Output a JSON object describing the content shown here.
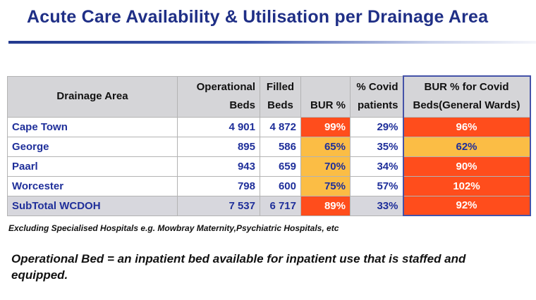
{
  "title": "Acute Care Availability & Utilisation per Drainage Area",
  "table": {
    "headers": {
      "area": "Drainage Area",
      "operational_1": "Operational",
      "operational_2": "Beds",
      "filled_1": "Filled",
      "filled_2": "Beds",
      "bur": "BUR %",
      "covid_1": "% Covid",
      "covid_2": "patients",
      "bur_covid_1": "BUR % for Covid",
      "bur_covid_2": "Beds(General Wards)"
    },
    "rows": [
      {
        "area": "Cape Town",
        "operational": "4 901",
        "filled": "4 872",
        "bur": "99%",
        "covid": "29%",
        "bur_covid": "96%"
      },
      {
        "area": "George",
        "operational": "895",
        "filled": "586",
        "bur": "65%",
        "covid": "35%",
        "bur_covid": "62%"
      },
      {
        "area": "Paarl",
        "operational": "943",
        "filled": "659",
        "bur": "70%",
        "covid": "34%",
        "bur_covid": "90%"
      },
      {
        "area": "Worcester",
        "operational": "798",
        "filled": "600",
        "bur": "75%",
        "covid": "57%",
        "bur_covid": "102%"
      },
      {
        "area": "SubTotal WCDOH",
        "operational": "7 537",
        "filled": "6 717",
        "bur": "89%",
        "covid": "33%",
        "bur_covid": "92%"
      }
    ]
  },
  "colors": {
    "title": "#1f2f86",
    "high": "#ff4d1c",
    "medium": "#fbbd45",
    "value_text": "#1f2f9a",
    "header_bg": "#d5d5d8"
  },
  "footnote": "Excluding Specialised Hospitals e.g. Mowbray Maternity,Psychiatric Hospitals, etc",
  "definition": "Operational Bed = an inpatient bed available for inpatient use that is staffed and equipped."
}
